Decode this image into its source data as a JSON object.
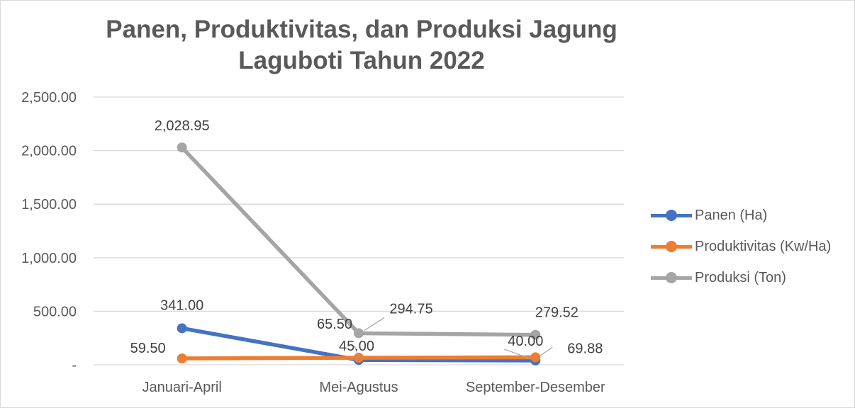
{
  "chart_data": {
    "type": "line",
    "title": [
      "Panen, Produktivitas, dan Produksi Jagung",
      "Laguboti Tahun 2022"
    ],
    "xlabel": "",
    "ylabel": "",
    "categories": [
      "Januari-April",
      "Mei-Agustus",
      "September-Desember"
    ],
    "ylim": [
      0,
      2500
    ],
    "yticks": [
      0,
      500,
      1000,
      1500,
      2000,
      2500
    ],
    "ytick_labels": [
      "-",
      "500.00",
      "1,000.00",
      "1,500.00",
      "2,000.00",
      "2,500.00"
    ],
    "grid": true,
    "legend": "right",
    "series": [
      {
        "name": "Panen (Ha)",
        "color": "#4472c4",
        "values": [
          341.0,
          45.0,
          40.0
        ],
        "labels": [
          "341.00",
          "45.00",
          "40.00"
        ]
      },
      {
        "name": "Produktivitas (Kw/Ha)",
        "color": "#ed7d31",
        "values": [
          59.5,
          65.5,
          69.88
        ],
        "labels": [
          "59.50",
          "65.50",
          "69.88"
        ]
      },
      {
        "name": "Produksi (Ton)",
        "color": "#a5a5a5",
        "values": [
          2028.95,
          294.75,
          279.52
        ],
        "labels": [
          "2,028.95",
          "294.75",
          "279.52"
        ]
      }
    ]
  }
}
